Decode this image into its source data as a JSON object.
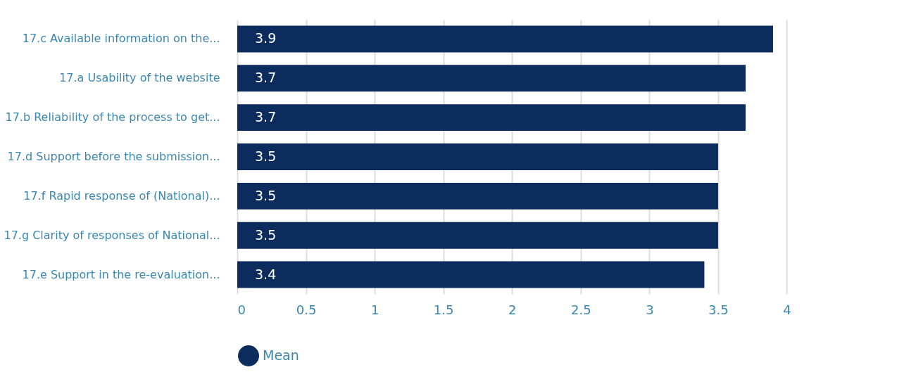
{
  "chart_data": {
    "type": "bar",
    "orientation": "horizontal",
    "categories": [
      "17.c Available information on the...",
      "17.a Usability of the website",
      "17.b Reliability of the process to get...",
      "17.d Support before the submission...",
      "17.f Rapid response of (National)...",
      "17.g Clarity of responses of National...",
      "17.e Support in the re-evaluation..."
    ],
    "series": [
      {
        "name": "Mean",
        "color": "#0d2c5e",
        "values": [
          3.9,
          3.7,
          3.7,
          3.5,
          3.5,
          3.5,
          3.4
        ]
      }
    ],
    "xlim": [
      0,
      4.1
    ],
    "xticks": [
      0,
      0.5,
      1,
      1.5,
      2,
      2.5,
      3,
      3.5,
      4
    ],
    "grid": "x",
    "legend": "bottom",
    "data_labels": true
  }
}
